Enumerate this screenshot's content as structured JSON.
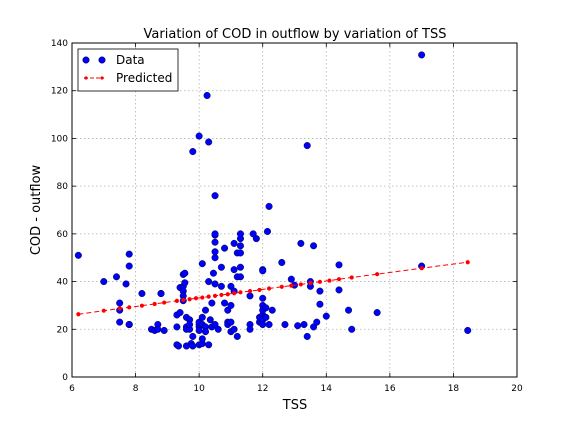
{
  "chart_data": {
    "type": "scatter",
    "title": "Variation of COD in outflow by variation of TSS",
    "xlabel": "TSS",
    "ylabel": "COD - outflow",
    "xlim": [
      6,
      20
    ],
    "ylim": [
      0,
      140
    ],
    "xticks": [
      "6",
      "8",
      "10",
      "12",
      "14",
      "16",
      "18",
      "20"
    ],
    "yticks": [
      "0",
      "20",
      "40",
      "60",
      "80",
      "100",
      "120",
      "140"
    ],
    "grid": true,
    "legend_position": "top-left",
    "colors": {
      "data": "#0000ff",
      "predicted": "#ff0000"
    },
    "series": [
      {
        "name": "Data",
        "style": "markers",
        "points": [
          [
            6.2,
            51
          ],
          [
            7,
            40
          ],
          [
            7.4,
            42
          ],
          [
            7.5,
            31
          ],
          [
            7.5,
            28
          ],
          [
            7.5,
            23
          ],
          [
            7.7,
            39
          ],
          [
            7.8,
            22
          ],
          [
            7.8,
            22
          ],
          [
            7.8,
            51.5
          ],
          [
            7.8,
            46.5
          ],
          [
            8.2,
            35
          ],
          [
            8.5,
            20
          ],
          [
            8.6,
            19.5
          ],
          [
            8.7,
            22
          ],
          [
            8.7,
            20
          ],
          [
            8.8,
            35
          ],
          [
            8.8,
            35
          ],
          [
            8.9,
            19.5
          ],
          [
            9.3,
            26
          ],
          [
            9.3,
            21
          ],
          [
            9.3,
            13.5
          ],
          [
            9.35,
            13
          ],
          [
            9.4,
            27
          ],
          [
            9.4,
            37.5
          ],
          [
            9.5,
            38
          ],
          [
            9.5,
            36
          ],
          [
            9.5,
            43
          ],
          [
            9.5,
            34
          ],
          [
            9.5,
            32
          ],
          [
            9.55,
            39.5
          ],
          [
            9.55,
            43.5
          ],
          [
            9.6,
            21
          ],
          [
            9.6,
            25
          ],
          [
            9.6,
            20
          ],
          [
            9.6,
            13
          ],
          [
            9.7,
            24
          ],
          [
            9.7,
            20
          ],
          [
            9.7,
            22
          ],
          [
            9.75,
            14
          ],
          [
            9.8,
            94.5
          ],
          [
            9.8,
            17
          ],
          [
            9.8,
            13
          ],
          [
            10,
            21
          ],
          [
            10,
            22
          ],
          [
            10,
            23
          ],
          [
            10,
            19.5
          ],
          [
            10,
            13.5
          ],
          [
            10,
            101
          ],
          [
            10.1,
            22
          ],
          [
            10.1,
            14
          ],
          [
            10.1,
            16
          ],
          [
            10.1,
            47.5
          ],
          [
            10.1,
            25
          ],
          [
            10.2,
            21
          ],
          [
            10.2,
            19
          ],
          [
            10.2,
            28
          ],
          [
            10.25,
            118
          ],
          [
            10.3,
            98.5
          ],
          [
            10.3,
            13.5
          ],
          [
            10.3,
            40
          ],
          [
            10.35,
            24
          ],
          [
            10.4,
            21
          ],
          [
            10.4,
            31
          ],
          [
            10.45,
            43.5
          ],
          [
            10.5,
            50
          ],
          [
            10.5,
            52.5
          ],
          [
            10.5,
            56.5
          ],
          [
            10.5,
            59.5
          ],
          [
            10.5,
            60
          ],
          [
            10.5,
            76
          ],
          [
            10.5,
            39
          ],
          [
            10.5,
            22
          ],
          [
            10.6,
            20
          ],
          [
            10.7,
            38
          ],
          [
            10.7,
            46
          ],
          [
            10.8,
            31
          ],
          [
            10.8,
            54
          ],
          [
            10.9,
            28
          ],
          [
            10.9,
            23
          ],
          [
            10.9,
            22
          ],
          [
            11,
            38
          ],
          [
            11,
            30
          ],
          [
            11,
            19
          ],
          [
            11,
            23
          ],
          [
            11.1,
            56
          ],
          [
            11.1,
            45
          ],
          [
            11.1,
            36
          ],
          [
            11.1,
            20
          ],
          [
            11.2,
            42
          ],
          [
            11.2,
            17
          ],
          [
            11.2,
            52
          ],
          [
            11.3,
            55
          ],
          [
            11.3,
            58
          ],
          [
            11.3,
            46
          ],
          [
            11.3,
            60
          ],
          [
            11.3,
            42
          ],
          [
            11.3,
            52
          ],
          [
            11.6,
            34
          ],
          [
            11.6,
            22
          ],
          [
            11.6,
            20
          ],
          [
            11.7,
            60
          ],
          [
            11.8,
            58
          ],
          [
            11.9,
            23
          ],
          [
            11.9,
            25
          ],
          [
            12,
            26
          ],
          [
            12,
            24
          ],
          [
            12,
            30
          ],
          [
            12,
            28
          ],
          [
            12,
            22
          ],
          [
            12,
            45
          ],
          [
            12,
            44.5
          ],
          [
            12,
            33
          ],
          [
            12.1,
            29
          ],
          [
            12.1,
            25
          ],
          [
            12.15,
            61
          ],
          [
            12.2,
            71.5
          ],
          [
            12.2,
            22
          ],
          [
            12.3,
            28
          ],
          [
            12.6,
            48
          ],
          [
            12.7,
            22
          ],
          [
            12.9,
            41
          ],
          [
            13,
            38.5
          ],
          [
            13.1,
            21.5
          ],
          [
            13.2,
            56
          ],
          [
            13.3,
            22
          ],
          [
            13.4,
            97
          ],
          [
            13.4,
            17
          ],
          [
            13.5,
            40
          ],
          [
            13.5,
            38
          ],
          [
            13.6,
            55
          ],
          [
            13.6,
            21
          ],
          [
            13.7,
            23
          ],
          [
            13.8,
            36
          ],
          [
            13.8,
            30.5
          ],
          [
            14,
            25.5
          ],
          [
            14.4,
            47
          ],
          [
            14.4,
            36.5
          ],
          [
            14.7,
            28
          ],
          [
            14.8,
            20
          ],
          [
            15.6,
            27
          ],
          [
            17,
            135
          ],
          [
            17,
            46.5
          ],
          [
            18.45,
            19.5
          ]
        ]
      },
      {
        "name": "Predicted",
        "style": "dashed-line-markers",
        "points": [
          [
            6.2,
            26.3
          ],
          [
            7,
            27.8
          ],
          [
            7.5,
            28.7
          ],
          [
            7.8,
            29.2
          ],
          [
            8.2,
            29.9
          ],
          [
            8.6,
            30.6
          ],
          [
            8.9,
            31.2
          ],
          [
            9.3,
            31.9
          ],
          [
            9.5,
            32.3
          ],
          [
            9.7,
            32.6
          ],
          [
            9.9,
            33
          ],
          [
            10.1,
            33.3
          ],
          [
            10.3,
            33.7
          ],
          [
            10.5,
            34
          ],
          [
            10.7,
            34.4
          ],
          [
            10.9,
            34.7
          ],
          [
            11.1,
            35.1
          ],
          [
            11.3,
            35.5
          ],
          [
            11.6,
            36
          ],
          [
            11.9,
            36.5
          ],
          [
            12.2,
            37.1
          ],
          [
            12.6,
            37.8
          ],
          [
            12.9,
            38.3
          ],
          [
            13.2,
            38.8
          ],
          [
            13.5,
            39.4
          ],
          [
            13.8,
            39.9
          ],
          [
            14.1,
            40.4
          ],
          [
            14.4,
            41
          ],
          [
            14.8,
            41.7
          ],
          [
            15.6,
            43.1
          ],
          [
            17,
            45.6
          ],
          [
            18.45,
            48.1
          ]
        ]
      }
    ]
  }
}
